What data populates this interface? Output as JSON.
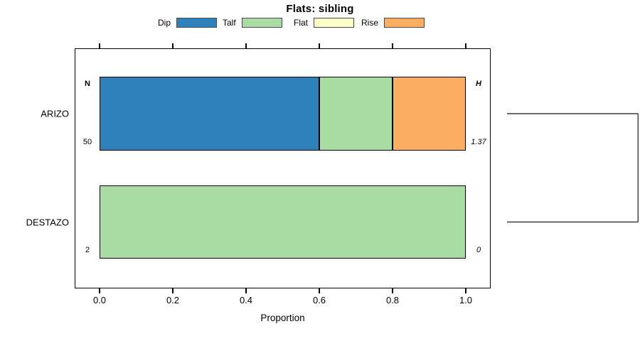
{
  "title": "Flats: sibling",
  "xlabel": "Proportion",
  "colors": {
    "dip": "#2E82B9",
    "talf": "#A9DCA3",
    "flat": "#FFFFC9",
    "rise": "#FBAD61",
    "outline": "#000000",
    "bracket": "#3a3a3a"
  },
  "legend": {
    "items": [
      {
        "label": "Dip",
        "color": "#2E82B9"
      },
      {
        "label": "Talf",
        "color": "#A9DCA3"
      },
      {
        "label": "Flat",
        "color": "#FFFFC9"
      },
      {
        "label": "Rise",
        "color": "#FBAD61"
      }
    ]
  },
  "x_axis": {
    "tick_labels": [
      "0.0",
      "0.2",
      "0.4",
      "0.6",
      "0.8",
      "1.0"
    ],
    "tick_values": [
      0.0,
      0.2,
      0.4,
      0.6,
      0.8,
      1.0
    ]
  },
  "annotations": {
    "n_header": "N",
    "h_header": "H",
    "rows": [
      {
        "category": "ARIZO",
        "n": "50",
        "h": "1.37"
      },
      {
        "category": "DESTAZO",
        "n": "2",
        "h": "0"
      }
    ]
  },
  "chart_data": {
    "type": "bar",
    "orientation": "horizontal",
    "stacked": true,
    "title": "Flats: sibling",
    "xlabel": "Proportion",
    "xlim": [
      0,
      1
    ],
    "grid": false,
    "legend_position": "top",
    "categories": [
      "ARIZO",
      "DESTAZO"
    ],
    "series": [
      {
        "name": "Dip",
        "color": "#2E82B9",
        "values": [
          0.6,
          0.0
        ]
      },
      {
        "name": "Talf",
        "color": "#A9DCA3",
        "values": [
          0.2,
          1.0
        ]
      },
      {
        "name": "Flat",
        "color": "#FFFFC9",
        "values": [
          0.0,
          0.0
        ]
      },
      {
        "name": "Rise",
        "color": "#FBAD61",
        "values": [
          0.2,
          0.0
        ]
      }
    ],
    "row_stats": [
      {
        "category": "ARIZO",
        "N": 50,
        "H": 1.37
      },
      {
        "category": "DESTAZO",
        "N": 2,
        "H": 0
      }
    ]
  }
}
